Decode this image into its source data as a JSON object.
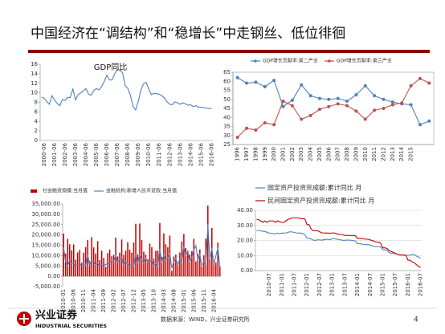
{
  "header": {
    "title": "中国经济在“调结构”和“稳增长”中走钢丝、低位徘徊"
  },
  "chart_data": [
    {
      "type": "line",
      "title": "GDP同比",
      "color": "#4f81bd",
      "categories": [
        null,
        "2000-06",
        null,
        null,
        null,
        "2001-06",
        null,
        null,
        null,
        "2002-06",
        null,
        null,
        null,
        "2003-06",
        null,
        null,
        null,
        "2004-06",
        null,
        null,
        null,
        "2005-06",
        null,
        null,
        null,
        "2006-06",
        null,
        null,
        null,
        "2007-06",
        null,
        null,
        null,
        "2008-06",
        null,
        null,
        null,
        "2009-06",
        null,
        null,
        null,
        "2010-06",
        null,
        null,
        null,
        "2011-06",
        null,
        null,
        null,
        "2012-06",
        null,
        null,
        null,
        "2013-06",
        null,
        null,
        null,
        "2014-06",
        null,
        null,
        null,
        "2015-06",
        null,
        null,
        null,
        "2016-06"
      ],
      "values": [
        9.1,
        8.9,
        8.2,
        7.6,
        9.4,
        8.5,
        7.8,
        7.3,
        8.6,
        8.4,
        9.0,
        9.0,
        10.8,
        8.5,
        9.6,
        10.0,
        10.4,
        10.9,
        9.7,
        9.5,
        10.5,
        10.9,
        10.6,
        11.3,
        12.4,
        13.7,
        12.7,
        12.7,
        14.0,
        15.0,
        14.7,
        14.2,
        11.5,
        10.9,
        9.5,
        7.1,
        6.4,
        8.2,
        10.6,
        11.9,
        12.2,
        10.8,
        9.6,
        9.9,
        9.8,
        9.7,
        9.4,
        8.9,
        8.1,
        7.6,
        7.5,
        8.1,
        7.9,
        7.6,
        7.9,
        7.7,
        7.4,
        7.5,
        7.1,
        7.3,
        7.0,
        7.0,
        6.9,
        6.8,
        6.7,
        6.7
      ],
      "ylim": [
        0,
        16
      ],
      "yticks": [
        0,
        2,
        4,
        6,
        8,
        10,
        12,
        14,
        16
      ]
    },
    {
      "type": "line",
      "markers": true,
      "legend": "top",
      "categories": [
        "1996",
        "1997",
        "1998",
        "1999",
        "2000",
        "2001",
        "2002",
        "2003",
        "2004",
        "2005",
        "2006",
        "2007",
        "2008",
        "2009",
        "2010",
        "2011",
        "2012",
        "2013",
        "2014",
        "2015",
        null,
        null
      ],
      "series": [
        {
          "name": "GDP增长贡献率:第二产业",
          "color": "#4f81bd",
          "values": [
            62,
            59,
            59.5,
            57,
            60.5,
            46,
            49.5,
            58,
            52,
            50.5,
            50,
            50.5,
            49,
            52.5,
            57.5,
            52,
            50,
            48.5,
            47.5,
            47,
            36,
            38
          ]
        },
        {
          "name": "GDP增长贡献率:第三产业",
          "color": "#c0504d",
          "values": [
            29,
            34,
            33,
            37,
            36,
            49,
            46.5,
            39,
            41,
            44.5,
            46,
            47.5,
            46.5,
            43.5,
            39,
            44,
            45,
            47,
            48,
            57.5,
            61.5,
            59
          ]
        }
      ],
      "ylim": [
        25,
        65
      ],
      "yticks": [
        25,
        30,
        35,
        40,
        45,
        50,
        55,
        60,
        65
      ]
    },
    {
      "type": "combo",
      "legend": "top",
      "categories": [
        "2010-01",
        null,
        null,
        null,
        null,
        "2010-06",
        null,
        null,
        null,
        null,
        "2010-11",
        null,
        null,
        null,
        null,
        "2011-04",
        null,
        null,
        null,
        null,
        "2011-09",
        null,
        null,
        null,
        null,
        "2012-02",
        null,
        null,
        null,
        null,
        "2012-07",
        null,
        null,
        null,
        null,
        "2012-12",
        null,
        null,
        null,
        null,
        "2013-05",
        null,
        null,
        null,
        null,
        "2013-10",
        null,
        null,
        null,
        null,
        "2014-03",
        null,
        null,
        null,
        null,
        "2014-08",
        null,
        null,
        null,
        null,
        "2015-01",
        null,
        null,
        null,
        null,
        "2015-06",
        null,
        null,
        null,
        null,
        "2015-11",
        null,
        null,
        null,
        null,
        "2016-04",
        null,
        null,
        null
      ],
      "series": [
        {
          "name": "社会融资规模:当月值",
          "type": "bar",
          "color": "#c00000",
          "values": [
            20600,
            11000,
            18100,
            15500,
            12600,
            15400,
            8000,
            11500,
            12700,
            6600,
            11400,
            14100,
            17600,
            7400,
            18900,
            14000,
            11000,
            17000,
            7800,
            12400,
            8900,
            4600,
            11200,
            12900,
            9700,
            10400,
            18700,
            9600,
            11400,
            17800,
            10400,
            12400,
            16500,
            12900,
            11400,
            16300,
            25400,
            10700,
            25500,
            17600,
            11900,
            10400,
            8200,
            15800,
            14100,
            8600,
            12300,
            12500,
            25800,
            9400,
            20700,
            15500,
            14000,
            19700,
            2700,
            9600,
            10500,
            6600,
            11500,
            16900,
            20500,
            13600,
            12400,
            10500,
            12200,
            18100,
            7200,
            10800,
            13000,
            4800,
            10200,
            18200,
            34200,
            8200,
            23400,
            7500,
            6600,
            16300,
            4900
          ]
        },
        {
          "name": "金融机构:新增人民币贷款:当月值",
          "type": "line",
          "color": "#4f81bd",
          "values": [
            13900,
            7000,
            5100,
            7700,
            6400,
            6000,
            5300,
            5400,
            5200,
            5900,
            5600,
            4800,
            10400,
            5400,
            6800,
            7400,
            5500,
            6300,
            4900,
            5500,
            4700,
            5900,
            5600,
            6400,
            7400,
            7100,
            10100,
            6800,
            7900,
            9200,
            5400,
            7000,
            6200,
            5000,
            5200,
            4500,
            10700,
            6200,
            10600,
            7900,
            6700,
            8600,
            7000,
            7100,
            7900,
            5100,
            6200,
            4800,
            13200,
            6400,
            10500,
            7700,
            8700,
            10800,
            3900,
            7000,
            8600,
            5500,
            8500,
            6970,
            14700,
            10200,
            11800,
            7100,
            9000,
            12800,
            14800,
            8100,
            10500,
            5100,
            7100,
            5900,
            25100,
            8000,
            13700,
            5600,
            9900,
            13800,
            4600
          ]
        }
      ],
      "ylim": [
        -5000,
        35000
      ],
      "yticks": [
        {
          "value": -5000,
          "label": "-5,000.00"
        },
        {
          "value": 0,
          "label": "0.00"
        },
        {
          "value": 5000,
          "label": "5,000.00"
        },
        {
          "value": 10000,
          "label": "10,000.00"
        },
        {
          "value": 15000,
          "label": "15,000.00"
        },
        {
          "value": 20000,
          "label": "20,000.00"
        },
        {
          "value": 25000,
          "label": "25,000.00"
        },
        {
          "value": 30000,
          "label": "30,000.00"
        },
        {
          "value": 35000,
          "label": "35,000.00"
        }
      ]
    },
    {
      "type": "line",
      "legend": "top",
      "grid": true,
      "categories": [
        null,
        null,
        null,
        null,
        null,
        null,
        "2010-07",
        null,
        null,
        null,
        null,
        null,
        "2011-01",
        null,
        null,
        null,
        null,
        null,
        "2011-07",
        null,
        null,
        null,
        null,
        null,
        "2012-01",
        null,
        null,
        null,
        null,
        null,
        "2012-07",
        null,
        null,
        null,
        null,
        null,
        "2013-01",
        null,
        null,
        null,
        null,
        null,
        "2013-07",
        null,
        null,
        null,
        null,
        null,
        "2014-01",
        null,
        null,
        null,
        null,
        null,
        "2014-07",
        null,
        null,
        null,
        null,
        null,
        "2015-01",
        null,
        null,
        null,
        null,
        null,
        "2015-07",
        null,
        null,
        null,
        null,
        null,
        "2016-01",
        null,
        null,
        null,
        null,
        null,
        "2016-07"
      ],
      "series": [
        {
          "name": "固定资产投资完成额:累计同比  月",
          "color": "#4f81bd",
          "values": [
            26.6,
            26.6,
            26.4,
            26.1,
            25.9,
            25.5,
            24.9,
            24.8,
            24.5,
            24.4,
            24.9,
            24.5,
            24.9,
            24.9,
            25.0,
            25.4,
            25.8,
            25.6,
            25.4,
            25.0,
            24.9,
            24.9,
            24.5,
            23.8,
            21.5,
            21.5,
            20.9,
            20.2,
            20.1,
            20.4,
            20.4,
            20.2,
            20.5,
            20.7,
            20.7,
            20.6,
            21.2,
            21.2,
            20.9,
            20.6,
            20.4,
            20.1,
            20.1,
            20.3,
            20.2,
            20.1,
            19.9,
            19.6,
            17.9,
            17.9,
            17.6,
            17.3,
            17.2,
            17.3,
            17.0,
            16.5,
            16.1,
            15.9,
            15.8,
            15.7,
            13.9,
            13.9,
            13.5,
            12.0,
            11.4,
            11.4,
            11.2,
            10.9,
            10.3,
            10.2,
            10.2,
            10.0,
            10.2,
            10.2,
            10.7,
            10.5,
            9.6,
            9.0,
            8.1
          ]
        },
        {
          "name": "民间固定资产投资完成额:累计同比  月",
          "color": "#c00000",
          "values": [
            34,
            34,
            33,
            32,
            33,
            32,
            33,
            33,
            33,
            32,
            33,
            32.5,
            32,
            32,
            33,
            34,
            34.5,
            35,
            35,
            35,
            35,
            34.5,
            34.5,
            34.3,
            30.5,
            30.5,
            27.5,
            26.5,
            26.5,
            26.5,
            25.8,
            25,
            25,
            24.9,
            24.9,
            24.8,
            25,
            25,
            24.5,
            24,
            24,
            23.8,
            23.3,
            23.4,
            23.3,
            23.3,
            23.3,
            23.1,
            21.3,
            21.3,
            21.3,
            21,
            20.9,
            20.8,
            20.4,
            19.9,
            19.4,
            19.0,
            18.9,
            18.1,
            15.1,
            15.1,
            14.7,
            13.3,
            12.7,
            12.1,
            11.4,
            10.9,
            10.4,
            10.4,
            10.3,
            10.1,
            6.9,
            6.9,
            5.7,
            5.2,
            3.9,
            2.8,
            2.1
          ]
        }
      ],
      "ylim": [
        0,
        40
      ],
      "yticks": [
        {
          "value": 0,
          "label": "0.00"
        },
        {
          "value": 10,
          "label": "10.00"
        },
        {
          "value": 20,
          "label": "20.00"
        },
        {
          "value": 30,
          "label": "30.00"
        },
        {
          "value": 40,
          "label": "40.00"
        }
      ]
    }
  ],
  "footer": {
    "logo_cn": "兴业证券",
    "logo_en": "INDUSTRIAL SECURITIES",
    "source": "数据来源：WIND，兴业证券研究所",
    "page": "4"
  }
}
